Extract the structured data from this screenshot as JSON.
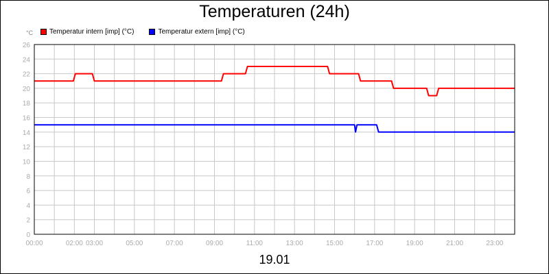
{
  "chart_data": {
    "type": "line",
    "title": "Temperaturen (24h)",
    "xlabel": "19.01",
    "ylabel": "°C",
    "ylim": [
      0,
      26
    ],
    "xlim": [
      0,
      24
    ],
    "grid": true,
    "legend_position": "top-left",
    "y_ticks": [
      0,
      2,
      4,
      6,
      8,
      10,
      12,
      14,
      16,
      18,
      20,
      22,
      24,
      26
    ],
    "x_ticks": [
      {
        "t": 0,
        "label": "00:00"
      },
      {
        "t": 2,
        "label": "02:00"
      },
      {
        "t": 3,
        "label": "03:00"
      },
      {
        "t": 5,
        "label": "05:00"
      },
      {
        "t": 7,
        "label": "07:00"
      },
      {
        "t": 9,
        "label": "09:00"
      },
      {
        "t": 11,
        "label": "11:00"
      },
      {
        "t": 13,
        "label": "13:00"
      },
      {
        "t": 15,
        "label": "15:00"
      },
      {
        "t": 17,
        "label": "17:00"
      },
      {
        "t": 19,
        "label": "19:00"
      },
      {
        "t": 21,
        "label": "21:00"
      },
      {
        "t": 23,
        "label": "23:00"
      }
    ],
    "series": [
      {
        "name": "Temperatur intern [imp] (°C)",
        "color": "#ff0000",
        "points": [
          [
            0,
            21
          ],
          [
            1.95,
            21
          ],
          [
            2.05,
            22
          ],
          [
            2.9,
            22
          ],
          [
            3.0,
            21
          ],
          [
            9.35,
            21
          ],
          [
            9.45,
            22
          ],
          [
            10.55,
            22
          ],
          [
            10.65,
            23
          ],
          [
            14.65,
            23
          ],
          [
            14.75,
            22
          ],
          [
            16.2,
            22
          ],
          [
            16.3,
            21
          ],
          [
            17.85,
            21
          ],
          [
            17.95,
            20
          ],
          [
            19.6,
            20
          ],
          [
            19.7,
            19
          ],
          [
            20.1,
            19
          ],
          [
            20.2,
            20
          ],
          [
            24,
            20
          ]
        ]
      },
      {
        "name": "Temperatur extern [imp] (°C)",
        "color": "#0000ff",
        "points": [
          [
            0,
            15
          ],
          [
            16.0,
            15
          ],
          [
            16.05,
            14
          ],
          [
            16.12,
            15
          ],
          [
            17.1,
            15
          ],
          [
            17.2,
            14
          ],
          [
            24,
            14
          ]
        ]
      }
    ]
  }
}
